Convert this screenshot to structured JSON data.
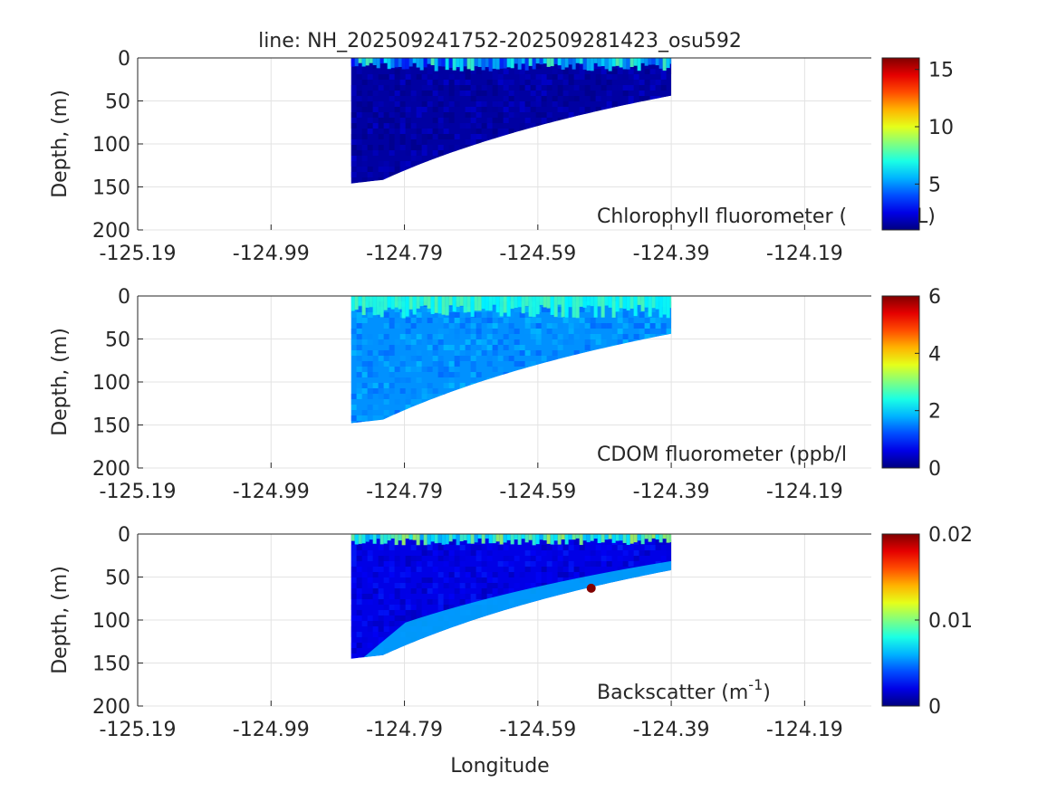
{
  "title": "line: NH_202509241752-202509281423_osu592",
  "xlabel": "Longitude",
  "chart_data": [
    {
      "type": "heatmap",
      "panel": "chlorophyll",
      "ylabel": "Depth, (m)",
      "annotation": "Chlorophyll fluorometer (μg/L)",
      "annotation_visible": "Chlorophyll fluorometer (",
      "annotation_tail": "L)",
      "xlim": [
        -125.19,
        -124.09
      ],
      "ylim": [
        200,
        0
      ],
      "xticks": [
        "-125.19",
        "-124.99",
        "-124.79",
        "-124.59",
        "-124.39",
        "-124.19"
      ],
      "yticks": [
        "0",
        "50",
        "100",
        "150",
        "200"
      ],
      "colorbar": {
        "min": 1,
        "max": 16,
        "ticks": [
          "5",
          "10",
          "15"
        ],
        "colormap": "jet"
      },
      "data_extent": {
        "lon_west": -124.87,
        "lon_east": -124.39,
        "max_depth_west_m": 146,
        "max_depth_east_m": 44
      },
      "surface_layer": {
        "depth_m": 12,
        "value_range": [
          3,
          8
        ]
      },
      "interior_value": 1.5
    },
    {
      "type": "heatmap",
      "panel": "cdom",
      "ylabel": "Depth, (m)",
      "annotation": "CDOM fluorometer (ppb/l",
      "xlim": [
        -125.19,
        -124.09
      ],
      "ylim": [
        200,
        0
      ],
      "xticks": [
        "-125.19",
        "-124.99",
        "-124.79",
        "-124.59",
        "-124.39",
        "-124.19"
      ],
      "yticks": [
        "0",
        "50",
        "100",
        "150",
        "200"
      ],
      "colorbar": {
        "min": 0,
        "max": 6,
        "ticks": [
          "0",
          "2",
          "4",
          "6"
        ],
        "colormap": "jet"
      },
      "data_extent": {
        "lon_west": -124.87,
        "lon_east": -124.39,
        "max_depth_west_m": 148,
        "max_depth_east_m": 44
      },
      "surface_layer": {
        "depth_m": 20,
        "value_range": [
          2.2,
          2.8
        ]
      },
      "interior_value": 1.6
    },
    {
      "type": "heatmap",
      "panel": "backscatter",
      "ylabel": "Depth, (m)",
      "annotation": "Backscatter (m",
      "annotation_sup": "-1",
      "annotation_tail": ")",
      "xlim": [
        -125.19,
        -124.09
      ],
      "ylim": [
        200,
        0
      ],
      "xticks": [
        "-125.19",
        "-124.99",
        "-124.79",
        "-124.59",
        "-124.39",
        "-124.19"
      ],
      "yticks": [
        "0",
        "50",
        "100",
        "150",
        "200"
      ],
      "colorbar": {
        "min": 0,
        "max": 0.02,
        "ticks": [
          "0",
          "0.01",
          "0.02"
        ],
        "colormap": "jet"
      },
      "data_extent": {
        "lon_west": -124.87,
        "lon_east": -124.39,
        "max_depth_west_m": 145,
        "max_depth_east_m": 42
      },
      "surface_layer": {
        "depth_m": 10,
        "value_range": [
          0.006,
          0.011
        ]
      },
      "interior_value": 0.002,
      "bottom_layer_value": 0.006,
      "outlier": {
        "lon": -124.51,
        "depth_m": 63,
        "value": 0.02
      }
    }
  ]
}
